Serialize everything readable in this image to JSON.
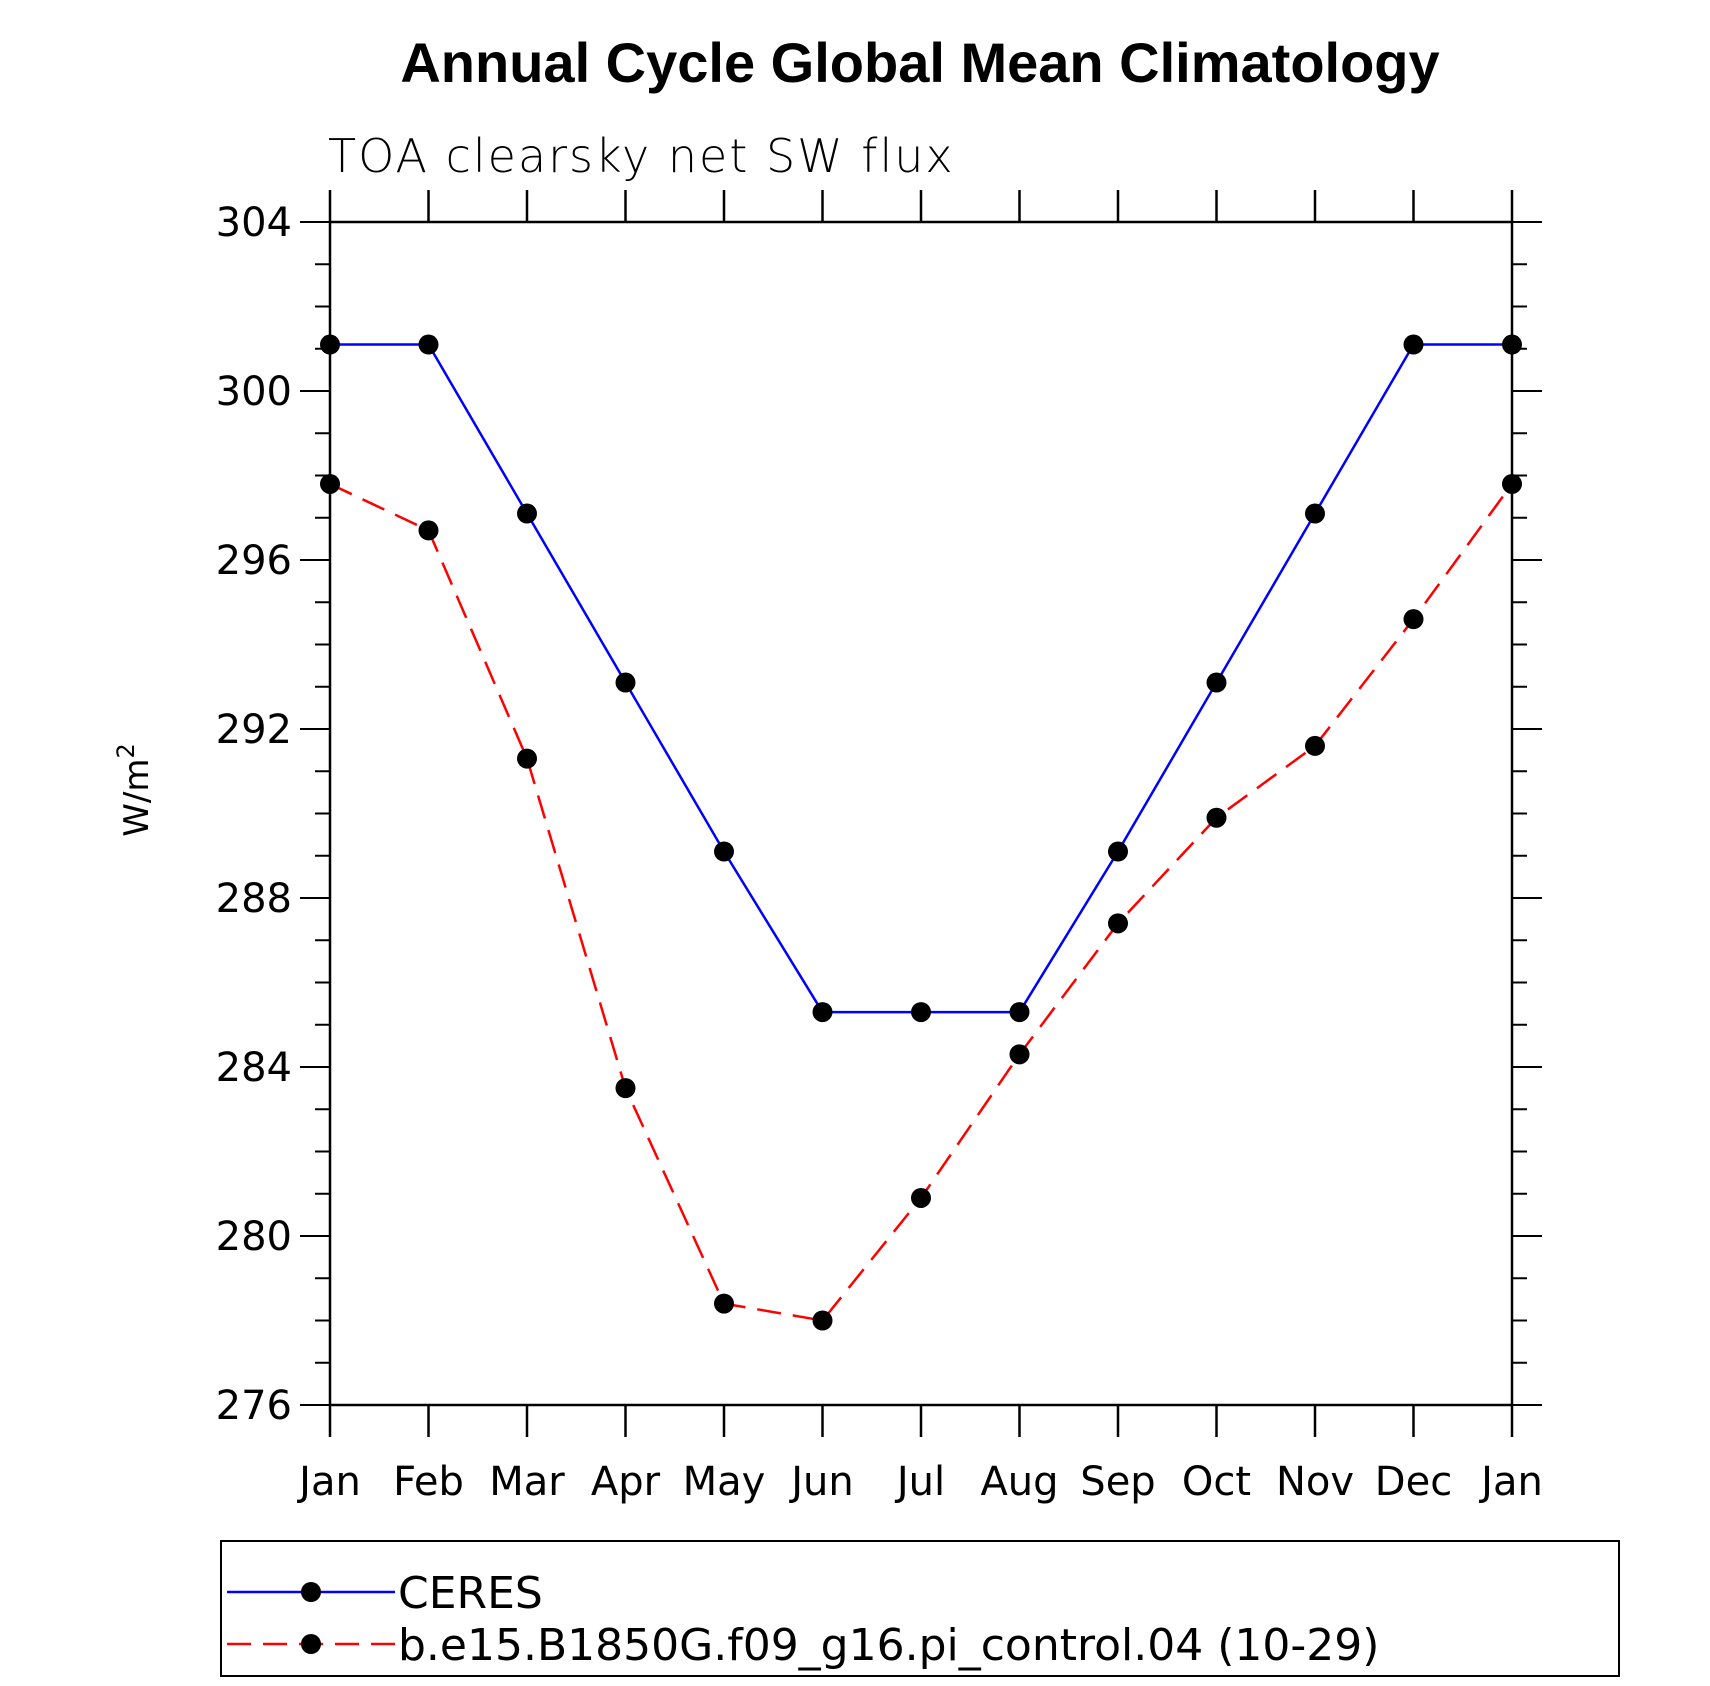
{
  "chart_data": {
    "type": "line",
    "title": "Annual Cycle Global Mean Climatology",
    "subtitle": "TOA clearsky net SW flux",
    "ylabel": "W/m",
    "ylabel_superscript": "2",
    "xlabel": "",
    "categories": [
      "Jan",
      "Feb",
      "Mar",
      "Apr",
      "May",
      "Jun",
      "Jul",
      "Aug",
      "Sep",
      "Oct",
      "Nov",
      "Dec",
      "Jan"
    ],
    "ylim": [
      276,
      304
    ],
    "yticks": [
      276,
      280,
      284,
      288,
      292,
      296,
      300,
      304
    ],
    "series": [
      {
        "name": "CERES",
        "color": "#0000ff",
        "dash": "solid",
        "values": [
          301.1,
          301.1,
          297.1,
          293.1,
          289.1,
          285.3,
          285.3,
          285.3,
          289.1,
          293.1,
          297.1,
          301.1,
          301.1
        ]
      },
      {
        "name": "b.e15.B1850G.f09_g16.pi_control.04 (10-29)",
        "color": "#ff0000",
        "dash": "dashed",
        "values": [
          297.8,
          296.7,
          291.3,
          283.5,
          278.4,
          278.0,
          280.9,
          284.3,
          287.4,
          289.9,
          291.6,
          294.6,
          297.8
        ]
      }
    ],
    "marker": "filled-circle",
    "marker_color": "#000000",
    "grid": false,
    "legend_position": "bottom"
  }
}
